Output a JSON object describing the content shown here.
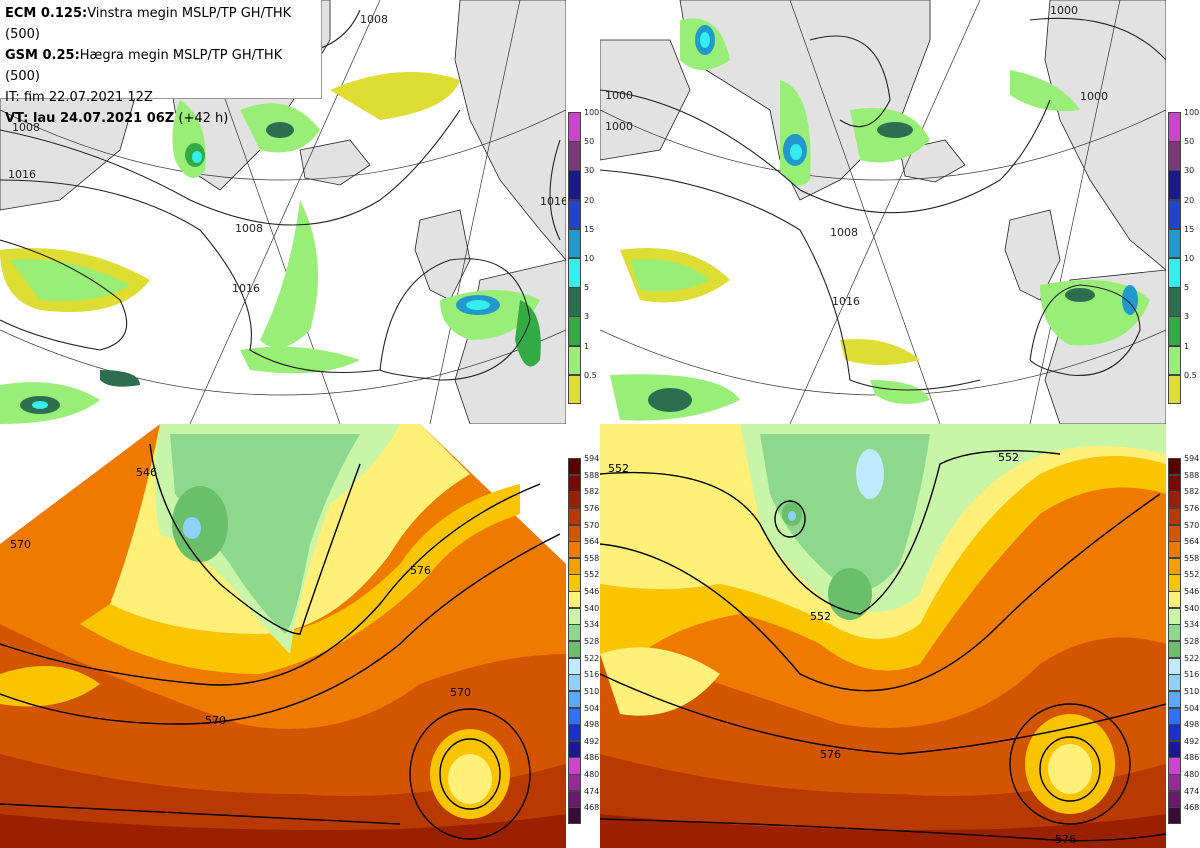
{
  "info": {
    "line1_bold": "ECM 0.125:",
    "line1_text": "Vinstra megin MSLP/TP GH/THK (500)",
    "line2_bold": "GSM 0.25:",
    "line2_text": "Hægra megin MSLP/TP GH/THK (500)",
    "line3_text": "IT: fim 22.07.2021 12Z",
    "line4_bold": "VT: lau 24.07.2021 06Z",
    "line4_text": " (+42 h)"
  },
  "precip_scale": {
    "labels": [
      "100",
      "50",
      "30",
      "20",
      "15",
      "10",
      "5",
      "3",
      "1",
      "0.5"
    ],
    "colors": [
      "#cc44cc",
      "#7a3a7a",
      "#1a1a8c",
      "#2244cc",
      "#2299cc",
      "#33eeee",
      "#2e6e50",
      "#33aa44",
      "#99ee77",
      "#dddd33"
    ]
  },
  "gh_scale": {
    "labels": [
      "594",
      "588",
      "582",
      "576",
      "570",
      "564",
      "558",
      "552",
      "546",
      "540",
      "534",
      "528",
      "522",
      "516",
      "510",
      "504",
      "498",
      "492",
      "486",
      "480",
      "474",
      "468"
    ],
    "colors": [
      "#5a0000",
      "#7a0a00",
      "#9a2000",
      "#b83a00",
      "#d45500",
      "#ee7a00",
      "#f5a000",
      "#fbc400",
      "#fff07a",
      "#c8f5a8",
      "#8ed88e",
      "#6bbf6b",
      "#bfeaff",
      "#8fd0ff",
      "#5aa8ff",
      "#3070ff",
      "#1a30cc",
      "#1a1a99",
      "#cc44cc",
      "#9a2a9a",
      "#6a1a6a",
      "#3a0a3a"
    ]
  },
  "map_labels": {
    "tl": [
      "1008",
      "1008",
      "1016",
      "1016",
      "1008",
      "1016"
    ],
    "tr": [
      "1000",
      "1000",
      "1000",
      "1008",
      "1016",
      "1000"
    ],
    "bl": [
      "546",
      "570",
      "570",
      "570",
      "576"
    ],
    "br": [
      "552",
      "552",
      "552",
      "576",
      "576"
    ]
  },
  "colors": {
    "land": "#e0e0e0",
    "sea": "#ffffff",
    "coast": "#222222",
    "isobar": "#222222"
  }
}
